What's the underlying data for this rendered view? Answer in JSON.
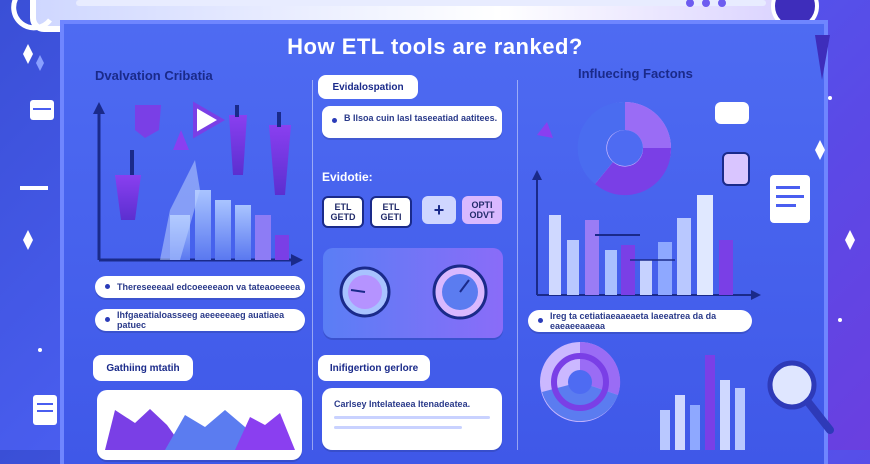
{
  "title": "How ETL tools are ranked?",
  "left_panel": {
    "heading": "Dvalvation Cribatia",
    "items": [
      {
        "text": "Thereseeeaal edcoeeeeaon va tateaoeeeea"
      },
      {
        "text": "Ihfgaeatialoasseeg aeeeeeaeg auatiaea patuec"
      }
    ],
    "bottom_heading": "Gathiing mtatih"
  },
  "center_panel": {
    "heading": "Evidalospation",
    "note": "B Ilsoa cuin lasl taseeatiad aatitees.",
    "sub_heading": "Evidotie:",
    "tags": [
      {
        "text": "ETL GETD"
      },
      {
        "text": "ETL GETI"
      },
      {
        "text": "+"
      },
      {
        "text": "OPTI ODVT"
      }
    ],
    "bottom_heading": "Inifigertion gerlore",
    "bottom_note": "Carlsey Intelateaea Itenadeatea."
  },
  "right_panel": {
    "heading": "Influecing Factons",
    "items": [
      {
        "text": "Ireg ta cetiatiaeaaeaeta laeeatrea da da eaeaeeaaeaa"
      }
    ]
  },
  "colors": {
    "background": "#4a5ef0",
    "accent_purple": "#7a3fe6",
    "accent_blue": "#5b8cff",
    "pill": "#ffffff",
    "text_dark": "#1a2a8a"
  }
}
